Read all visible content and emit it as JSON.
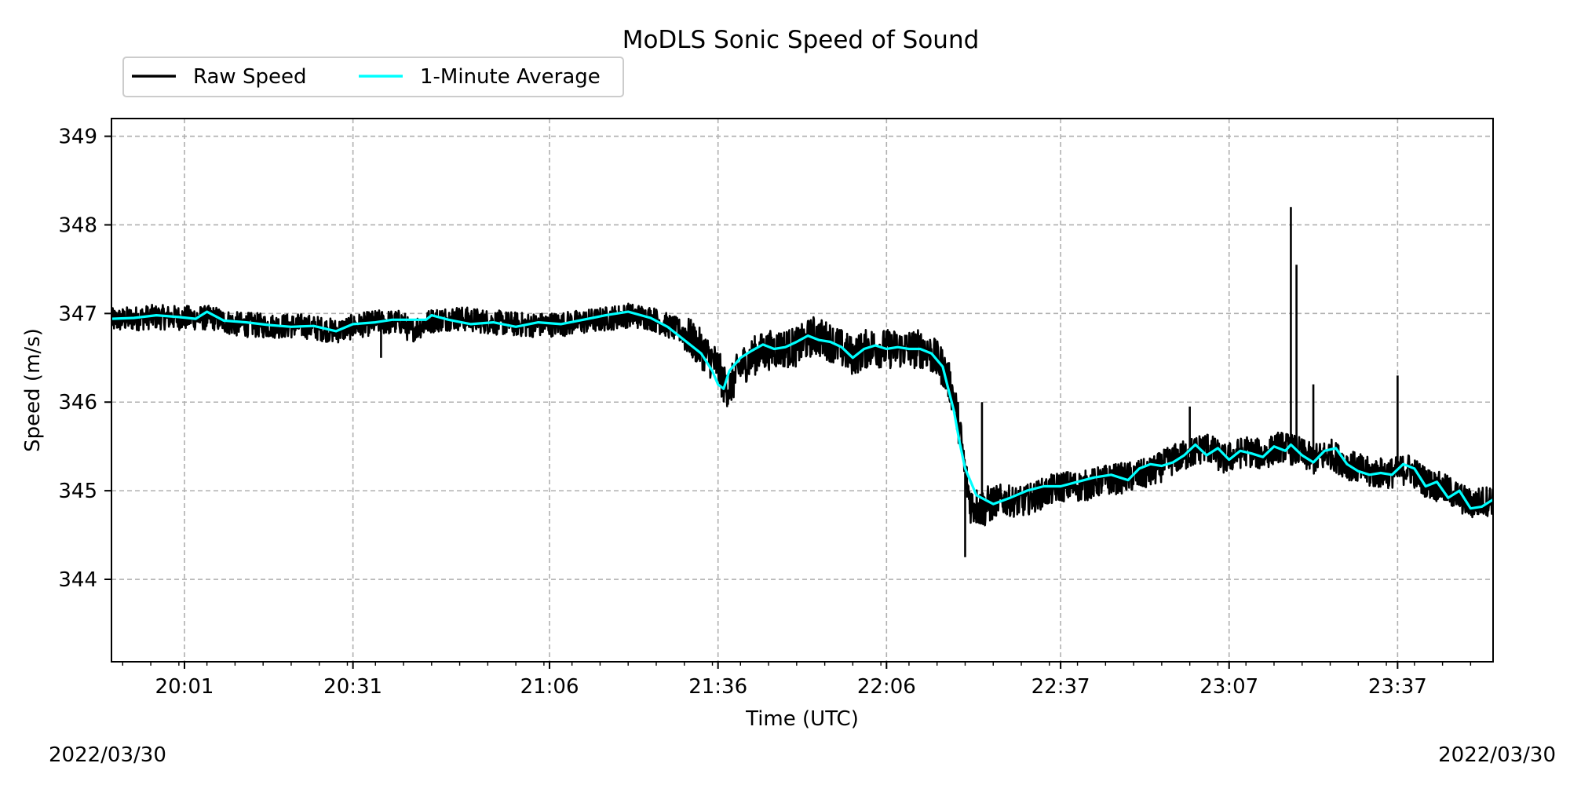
{
  "chart_data": {
    "type": "line",
    "title": "MoDLS Sonic Speed of Sound",
    "xlabel": "Time (UTC)",
    "ylabel": "Speed (m/s)",
    "date_left": "2022/03/30",
    "date_right": "2022/03/30",
    "x_ticks": [
      "20:01",
      "20:31",
      "21:06",
      "21:36",
      "22:06",
      "22:37",
      "23:07",
      "23:37"
    ],
    "x_tick_minutes": [
      1201,
      1231,
      1266,
      1296,
      1326,
      1357,
      1387,
      1417
    ],
    "xlim_minutes": [
      1188,
      1434
    ],
    "y_ticks": [
      "344",
      "345",
      "346",
      "347",
      "348",
      "349"
    ],
    "ylim": [
      343.07,
      349.2
    ],
    "grid": true,
    "legend": {
      "placement": "top-left, above plot",
      "entries": [
        {
          "name": "Raw Speed",
          "color": "#000000"
        },
        {
          "name": "1-Minute Average",
          "color": "#00ffff"
        }
      ]
    },
    "series": [
      {
        "name": "Raw Speed",
        "color": "#000000",
        "noise": 0.14,
        "points": [
          [
            1188,
            346.92
          ],
          [
            1195,
            346.96
          ],
          [
            1201,
            346.95
          ],
          [
            1206,
            346.95
          ],
          [
            1210,
            346.88
          ],
          [
            1216,
            346.86
          ],
          [
            1222,
            346.86
          ],
          [
            1228,
            346.8
          ],
          [
            1231,
            346.85
          ],
          [
            1235,
            346.9
          ],
          [
            1240,
            346.9
          ],
          [
            1241,
            346.8
          ],
          [
            1245,
            346.92
          ],
          [
            1249,
            346.95
          ],
          [
            1256,
            346.9
          ],
          [
            1262,
            346.87
          ],
          [
            1268,
            346.88
          ],
          [
            1274,
            346.92
          ],
          [
            1280,
            346.98
          ],
          [
            1284,
            346.95
          ],
          [
            1290,
            346.78
          ],
          [
            1293,
            346.6
          ],
          [
            1296,
            346.4
          ],
          [
            1297,
            346.2
          ],
          [
            1298,
            346.15
          ],
          [
            1300,
            346.4
          ],
          [
            1303,
            346.55
          ],
          [
            1306,
            346.6
          ],
          [
            1310,
            346.62
          ],
          [
            1313,
            346.75
          ],
          [
            1316,
            346.68
          ],
          [
            1320,
            346.52
          ],
          [
            1323,
            346.62
          ],
          [
            1326,
            346.6
          ],
          [
            1330,
            346.6
          ],
          [
            1333,
            346.6
          ],
          [
            1336,
            346.4
          ],
          [
            1337,
            346.25
          ],
          [
            1338,
            346.05
          ],
          [
            1339,
            345.7
          ],
          [
            1340,
            345.2
          ],
          [
            1341,
            344.85
          ],
          [
            1343,
            344.8
          ],
          [
            1346,
            344.9
          ],
          [
            1350,
            344.87
          ],
          [
            1353,
            344.95
          ],
          [
            1357,
            345.05
          ],
          [
            1361,
            345.05
          ],
          [
            1365,
            345.12
          ],
          [
            1369,
            345.15
          ],
          [
            1373,
            345.2
          ],
          [
            1377,
            345.35
          ],
          [
            1380,
            345.42
          ],
          [
            1383,
            345.5
          ],
          [
            1386,
            345.35
          ],
          [
            1390,
            345.45
          ],
          [
            1393,
            345.4
          ],
          [
            1396,
            345.5
          ],
          [
            1399,
            345.45
          ],
          [
            1402,
            345.35
          ],
          [
            1405,
            345.42
          ],
          [
            1408,
            345.3
          ],
          [
            1412,
            345.2
          ],
          [
            1416,
            345.2
          ],
          [
            1419,
            345.25
          ],
          [
            1422,
            345.1
          ],
          [
            1426,
            345.0
          ],
          [
            1430,
            344.85
          ],
          [
            1434,
            344.9
          ]
        ],
        "spikes": [
          [
            1343,
            346.0
          ],
          [
            1398,
            348.2
          ],
          [
            1399,
            347.55
          ],
          [
            1402,
            346.2
          ],
          [
            1417,
            346.3
          ],
          [
            1380,
            345.95
          ],
          [
            1340,
            344.25
          ],
          [
            1236,
            346.5
          ]
        ]
      },
      {
        "name": "1-Minute Average",
        "color": "#00ffff",
        "points": [
          [
            1188,
            346.94
          ],
          [
            1192,
            346.95
          ],
          [
            1196,
            346.98
          ],
          [
            1200,
            346.96
          ],
          [
            1203,
            346.94
          ],
          [
            1205,
            347.02
          ],
          [
            1208,
            346.92
          ],
          [
            1212,
            346.9
          ],
          [
            1216,
            346.87
          ],
          [
            1220,
            346.85
          ],
          [
            1224,
            346.86
          ],
          [
            1228,
            346.8
          ],
          [
            1231,
            346.88
          ],
          [
            1235,
            346.9
          ],
          [
            1238,
            346.93
          ],
          [
            1244,
            346.93
          ],
          [
            1245,
            346.98
          ],
          [
            1248,
            346.93
          ],
          [
            1252,
            346.88
          ],
          [
            1256,
            346.9
          ],
          [
            1260,
            346.85
          ],
          [
            1264,
            346.9
          ],
          [
            1268,
            346.88
          ],
          [
            1272,
            346.93
          ],
          [
            1276,
            346.98
          ],
          [
            1280,
            347.02
          ],
          [
            1284,
            346.95
          ],
          [
            1287,
            346.85
          ],
          [
            1290,
            346.7
          ],
          [
            1293,
            346.55
          ],
          [
            1295,
            346.35
          ],
          [
            1296,
            346.2
          ],
          [
            1297,
            346.15
          ],
          [
            1298,
            346.35
          ],
          [
            1300,
            346.5
          ],
          [
            1302,
            346.58
          ],
          [
            1304,
            346.65
          ],
          [
            1306,
            346.6
          ],
          [
            1308,
            346.62
          ],
          [
            1310,
            346.68
          ],
          [
            1312,
            346.75
          ],
          [
            1314,
            346.7
          ],
          [
            1316,
            346.68
          ],
          [
            1318,
            346.62
          ],
          [
            1320,
            346.5
          ],
          [
            1322,
            346.6
          ],
          [
            1324,
            346.64
          ],
          [
            1326,
            346.6
          ],
          [
            1328,
            346.62
          ],
          [
            1330,
            346.6
          ],
          [
            1332,
            346.6
          ],
          [
            1334,
            346.55
          ],
          [
            1336,
            346.4
          ],
          [
            1337,
            346.15
          ],
          [
            1338,
            345.9
          ],
          [
            1339,
            345.55
          ],
          [
            1340,
            345.25
          ],
          [
            1342,
            344.95
          ],
          [
            1345,
            344.85
          ],
          [
            1348,
            344.92
          ],
          [
            1351,
            345.0
          ],
          [
            1354,
            345.05
          ],
          [
            1357,
            345.05
          ],
          [
            1360,
            345.1
          ],
          [
            1363,
            345.15
          ],
          [
            1366,
            345.18
          ],
          [
            1369,
            345.12
          ],
          [
            1371,
            345.25
          ],
          [
            1373,
            345.3
          ],
          [
            1375,
            345.28
          ],
          [
            1377,
            345.32
          ],
          [
            1379,
            345.4
          ],
          [
            1381,
            345.52
          ],
          [
            1383,
            345.4
          ],
          [
            1385,
            345.48
          ],
          [
            1387,
            345.35
          ],
          [
            1389,
            345.45
          ],
          [
            1391,
            345.42
          ],
          [
            1393,
            345.38
          ],
          [
            1395,
            345.5
          ],
          [
            1397,
            345.45
          ],
          [
            1398,
            345.52
          ],
          [
            1400,
            345.4
          ],
          [
            1402,
            345.32
          ],
          [
            1404,
            345.45
          ],
          [
            1406,
            345.48
          ],
          [
            1408,
            345.3
          ],
          [
            1410,
            345.22
          ],
          [
            1412,
            345.18
          ],
          [
            1414,
            345.2
          ],
          [
            1416,
            345.18
          ],
          [
            1418,
            345.3
          ],
          [
            1420,
            345.25
          ],
          [
            1422,
            345.05
          ],
          [
            1424,
            345.1
          ],
          [
            1426,
            344.92
          ],
          [
            1428,
            345.0
          ],
          [
            1430,
            344.8
          ],
          [
            1432,
            344.82
          ],
          [
            1434,
            344.9
          ]
        ]
      }
    ]
  }
}
